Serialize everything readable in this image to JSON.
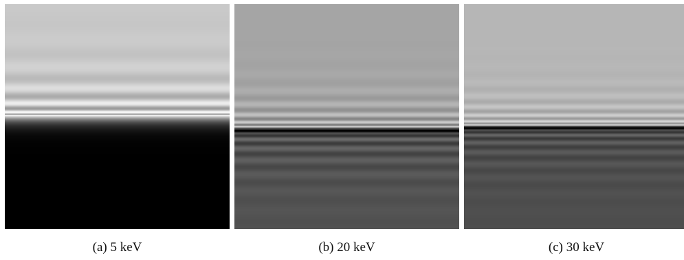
{
  "figure": {
    "panels": [
      {
        "id": "a",
        "caption": "(a) 5 keV"
      },
      {
        "id": "b",
        "caption": "(b) 20 keV"
      },
      {
        "id": "c",
        "caption": "(c) 30 keV"
      }
    ]
  }
}
